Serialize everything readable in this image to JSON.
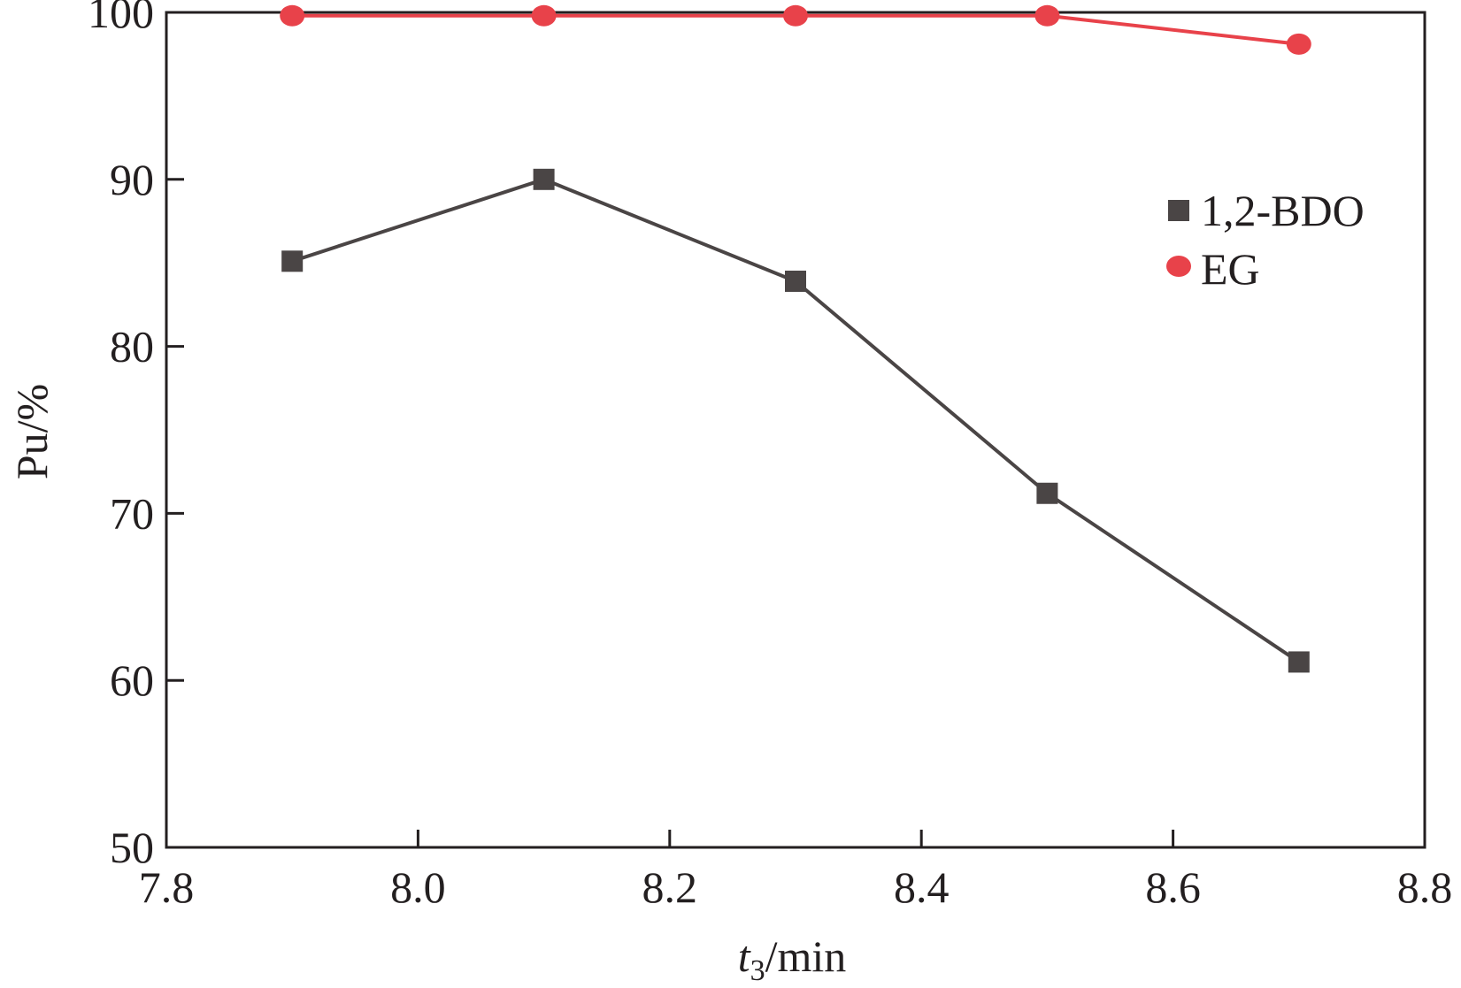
{
  "chart_data": {
    "type": "line",
    "title": "",
    "xlabel": {
      "italic": "t",
      "subscript": "3",
      "rest": "/min"
    },
    "ylabel": "Pu/%",
    "xlim": [
      7.8,
      8.8
    ],
    "ylim": [
      50,
      100
    ],
    "xticks": [
      7.8,
      8.0,
      8.2,
      8.4,
      8.6,
      8.8
    ],
    "xtick_labels": [
      "7.8",
      "8.0",
      "8.2",
      "8.4",
      "8.6",
      "8.8"
    ],
    "yticks": [
      50,
      60,
      70,
      80,
      90,
      100
    ],
    "ytick_labels": [
      "50",
      "60",
      "70",
      "80",
      "90",
      "100"
    ],
    "grid": false,
    "legend": {
      "position": "right",
      "entries": [
        "1,2-BDO",
        "EG"
      ]
    },
    "x": [
      7.9,
      8.1,
      8.3,
      8.5,
      8.7
    ],
    "series": [
      {
        "name": "1,2-BDO",
        "marker": "square",
        "color": "#4a4545",
        "values": [
          85.1,
          90.0,
          83.9,
          71.2,
          61.1
        ]
      },
      {
        "name": "EG",
        "marker": "circle",
        "color": "#e8424a",
        "values": [
          99.8,
          99.8,
          99.8,
          99.8,
          98.1
        ]
      }
    ]
  }
}
